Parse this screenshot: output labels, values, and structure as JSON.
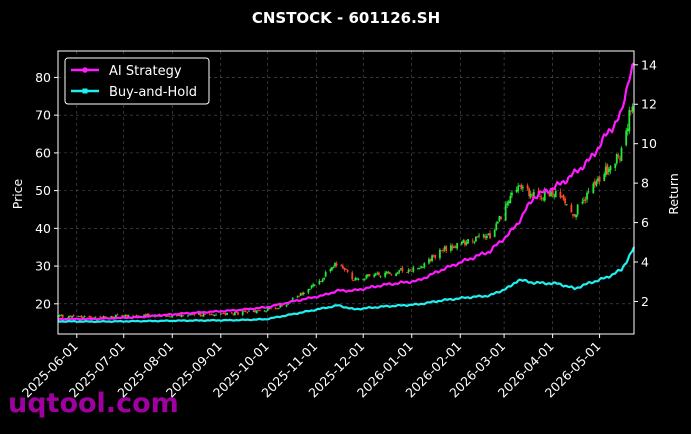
{
  "watermark": "uqtool.com",
  "chart_data": {
    "type": "line",
    "title": "CNSTOCK - 601126.SH",
    "ylabel": "Price",
    "y2label": "Return",
    "ylim": [
      12,
      87
    ],
    "y2lim": [
      0.35,
      14.7
    ],
    "yticks": [
      20,
      30,
      40,
      50,
      60,
      70,
      80
    ],
    "y2ticks": [
      2,
      4,
      6,
      8,
      10,
      12,
      14
    ],
    "xlim": [
      "2025-05-20",
      "2026-05-23"
    ],
    "xticks": [
      "2025-06-01",
      "2025-07-01",
      "2025-08-01",
      "2025-09-01",
      "2025-10-01",
      "2025-11-01",
      "2025-12-01",
      "2026-01-01",
      "2026-02-01",
      "2026-03-01",
      "2026-04-01",
      "2026-05-01"
    ],
    "grid": true,
    "legend_position": "top-left",
    "colors": {
      "up": "#26e63a",
      "down": "#ff4a2a",
      "strategy": "#ff1aff",
      "buyhold": "#1ff0f0",
      "grid": "#555555"
    },
    "price_anchors": [
      [
        "2025-05-20",
        16.6
      ],
      [
        "2025-06-15",
        16.5
      ],
      [
        "2025-07-10",
        16.8
      ],
      [
        "2025-08-10",
        17.1
      ],
      [
        "2025-09-10",
        17.4
      ],
      [
        "2025-09-30",
        18.3
      ],
      [
        "2025-10-10",
        19.5
      ],
      [
        "2025-10-25",
        23.0
      ],
      [
        "2025-11-05",
        27.0
      ],
      [
        "2025-11-15",
        31.0
      ],
      [
        "2025-11-25",
        26.5
      ],
      [
        "2025-12-15",
        28.0
      ],
      [
        "2026-01-05",
        29.5
      ],
      [
        "2026-01-20",
        34.0
      ],
      [
        "2026-02-05",
        36.5
      ],
      [
        "2026-02-20",
        38.0
      ],
      [
        "2026-03-01",
        45.0
      ],
      [
        "2026-03-10",
        51.0
      ],
      [
        "2026-03-20",
        48.5
      ],
      [
        "2026-04-05",
        49.0
      ],
      [
        "2026-04-15",
        44.0
      ],
      [
        "2026-04-25",
        50.0
      ],
      [
        "2026-05-05",
        55.0
      ],
      [
        "2026-05-15",
        60.0
      ],
      [
        "2026-05-23",
        76.0
      ]
    ],
    "series": [
      {
        "name": "AI Strategy",
        "points": [
          [
            "2025-05-20",
            1.1
          ],
          [
            "2025-06-15",
            1.12
          ],
          [
            "2025-07-10",
            1.2
          ],
          [
            "2025-08-10",
            1.4
          ],
          [
            "2025-09-10",
            1.55
          ],
          [
            "2025-09-30",
            1.7
          ],
          [
            "2025-10-20",
            2.05
          ],
          [
            "2025-11-05",
            2.3
          ],
          [
            "2025-11-15",
            2.55
          ],
          [
            "2025-11-25",
            2.55
          ],
          [
            "2025-12-15",
            2.85
          ],
          [
            "2026-01-05",
            3.05
          ],
          [
            "2026-01-20",
            3.6
          ],
          [
            "2026-02-05",
            4.1
          ],
          [
            "2026-02-20",
            4.55
          ],
          [
            "2026-03-05",
            5.5
          ],
          [
            "2026-03-10",
            6.0
          ],
          [
            "2026-03-20",
            7.3
          ],
          [
            "2026-04-05",
            7.9
          ],
          [
            "2026-04-15",
            8.5
          ],
          [
            "2026-04-25",
            9.2
          ],
          [
            "2026-05-05",
            10.4
          ],
          [
            "2026-05-15",
            11.5
          ],
          [
            "2026-05-20",
            13.5
          ],
          [
            "2026-05-23",
            14.0
          ]
        ]
      },
      {
        "name": "Buy-and-Hold",
        "points": [
          [
            "2025-05-20",
            0.99
          ],
          [
            "2025-06-15",
            0.98
          ],
          [
            "2025-07-10",
            1.0
          ],
          [
            "2025-08-10",
            1.03
          ],
          [
            "2025-09-10",
            1.05
          ],
          [
            "2025-09-30",
            1.1
          ],
          [
            "2025-10-20",
            1.4
          ],
          [
            "2025-11-05",
            1.65
          ],
          [
            "2025-11-15",
            1.8
          ],
          [
            "2025-11-25",
            1.6
          ],
          [
            "2025-12-15",
            1.75
          ],
          [
            "2026-01-05",
            1.85
          ],
          [
            "2026-01-20",
            2.05
          ],
          [
            "2026-02-05",
            2.2
          ],
          [
            "2026-02-20",
            2.3
          ],
          [
            "2026-03-05",
            2.75
          ],
          [
            "2026-03-10",
            3.1
          ],
          [
            "2026-03-20",
            2.95
          ],
          [
            "2026-04-05",
            2.9
          ],
          [
            "2026-04-15",
            2.65
          ],
          [
            "2026-04-25",
            2.95
          ],
          [
            "2026-05-05",
            3.2
          ],
          [
            "2026-05-15",
            3.6
          ],
          [
            "2026-05-20",
            4.3
          ],
          [
            "2026-05-23",
            4.7
          ]
        ]
      }
    ]
  }
}
